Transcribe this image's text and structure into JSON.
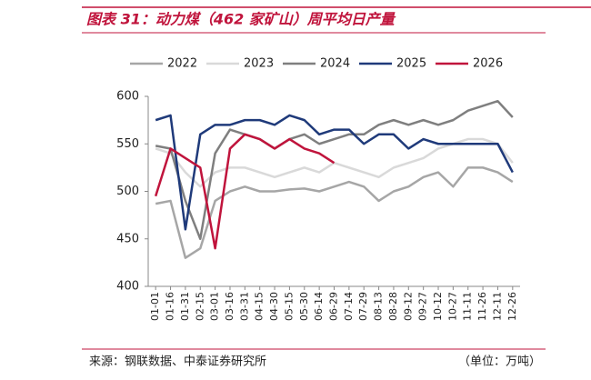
{
  "header": {
    "title": "图表 31：动力煤（462 家矿山）周平均日产量"
  },
  "chart_data": {
    "type": "line",
    "categories": [
      "01-01",
      "01-16",
      "01-31",
      "02-15",
      "03-01",
      "03-16",
      "03-31",
      "04-15",
      "04-30",
      "05-15",
      "05-30",
      "06-14",
      "06-29",
      "07-14",
      "07-29",
      "08-13",
      "08-28",
      "09-12",
      "09-27",
      "10-12",
      "10-27",
      "11-11",
      "11-26",
      "12-11",
      "12-26"
    ],
    "series": [
      {
        "name": "2022",
        "color": "#a6a6a6",
        "values": [
          487,
          490,
          430,
          440,
          490,
          500,
          505,
          500,
          500,
          502,
          503,
          500,
          505,
          510,
          505,
          490,
          500,
          505,
          515,
          520,
          505,
          525,
          525,
          520,
          510
        ]
      },
      {
        "name": "2023",
        "color": "#d9d9d9",
        "values": [
          545,
          540,
          520,
          505,
          520,
          525,
          525,
          520,
          515,
          520,
          525,
          520,
          530,
          525,
          520,
          515,
          525,
          530,
          535,
          545,
          550,
          555,
          555,
          550,
          530
        ]
      },
      {
        "name": "2024",
        "color": "#7f7f7f",
        "values": [
          548,
          545,
          490,
          450,
          540,
          565,
          560,
          555,
          545,
          555,
          560,
          550,
          555,
          560,
          560,
          570,
          575,
          570,
          575,
          570,
          575,
          585,
          590,
          595,
          578
        ]
      },
      {
        "name": "2025",
        "color": "#1f3a7a",
        "values": [
          575,
          580,
          460,
          560,
          570,
          570,
          575,
          575,
          570,
          580,
          575,
          560,
          565,
          565,
          550,
          560,
          560,
          545,
          555,
          550,
          550,
          550,
          550,
          550,
          520
        ]
      },
      {
        "name": "2026",
        "color": "#c0143c",
        "values": [
          495,
          545,
          535,
          525,
          440,
          545,
          560,
          555,
          545,
          555,
          545,
          540,
          530,
          null,
          null,
          null,
          null,
          null,
          null,
          null,
          null,
          null,
          null,
          null,
          null
        ]
      }
    ],
    "ylim": [
      400,
      600
    ],
    "yticks": [
      400,
      450,
      500,
      550,
      600
    ]
  },
  "footer": {
    "source": "来源：钢联数据、中泰证券研究所",
    "unit": "（单位：万吨）"
  }
}
